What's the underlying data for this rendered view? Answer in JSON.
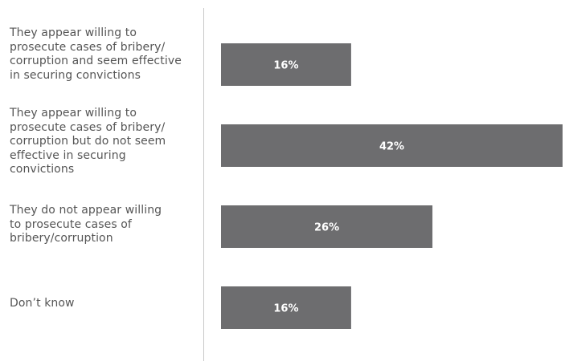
{
  "chart_data": {
    "type": "bar",
    "orientation": "horizontal",
    "categories": [
      "They appear willing to prosecute cases of bribery/ corruption and seem effective in securing convictions",
      "They appear willing to prosecute cases of bribery/ corruption but do not seem effective in securing convictions",
      "They do not appear willing to prosecute cases of bribery/corruption",
      "Don’t know"
    ],
    "category_lines": [
      [
        "They appear willing to",
        "prosecute cases of bribery/",
        "corruption and seem effective",
        "in securing convictions"
      ],
      [
        "They appear willing to",
        "prosecute cases of bribery/",
        "corruption but do not seem",
        "effective in securing",
        "convictions"
      ],
      [
        "They do not appear willing",
        "to prosecute cases of",
        "bribery/corruption"
      ],
      [
        "Don’t know"
      ]
    ],
    "values": [
      16,
      42,
      26,
      16
    ],
    "value_labels": [
      "16%",
      "42%",
      "26%",
      "16%"
    ],
    "xlim": [
      0,
      42
    ],
    "unit": "%",
    "bar_color": "#6d6d6f",
    "label_color": "#ffffff",
    "text_color": "#555555",
    "axis_color": "#c8c8c8",
    "grid": false
  }
}
